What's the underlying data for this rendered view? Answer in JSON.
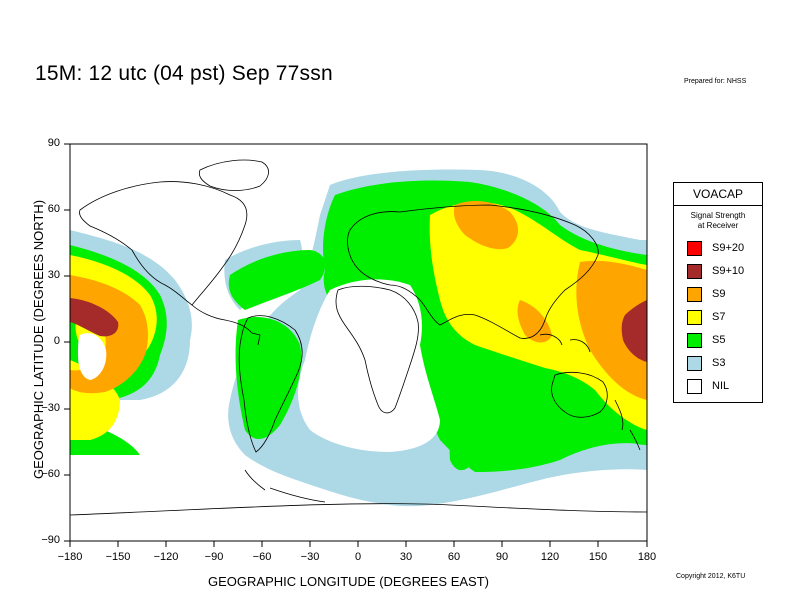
{
  "header": {
    "title": "15M:  12 utc (04 pst) Sep 77ssn",
    "prepared_for": "Prepared for: NHSS",
    "copyright": "Copyright 2012, K6TU"
  },
  "axes": {
    "xlabel": "GEOGRAPHIC LONGITUDE (DEGREES EAST)",
    "ylabel": "GEOGRAPHIC LATITUDE (DEGREES NORTH)",
    "x_ticks": [
      "−180",
      "−150",
      "−120",
      "−90",
      "−60",
      "−30",
      "0",
      "30",
      "60",
      "90",
      "120",
      "150",
      "180"
    ],
    "y_ticks": [
      "90",
      "60",
      "30",
      "0",
      "−30",
      "−60",
      "−90"
    ],
    "xlim": [
      -180,
      180
    ],
    "ylim": [
      -90,
      90
    ]
  },
  "legend": {
    "title": "VOACAP",
    "subtitle_line1": "Signal Strength",
    "subtitle_line2": "at Receiver",
    "items": [
      {
        "label": "S9+20",
        "color": "#ff0000"
      },
      {
        "label": "S9+10",
        "color": "#a52a2a"
      },
      {
        "label": "S9",
        "color": "#ffa500"
      },
      {
        "label": "S7",
        "color": "#ffff00"
      },
      {
        "label": "S5",
        "color": "#00ee00"
      },
      {
        "label": "S3",
        "color": "#add8e6"
      },
      {
        "label": "NIL",
        "color": "#ffffff"
      }
    ]
  },
  "colors": {
    "s9plus10": "#a52a2a",
    "s9": "#ffa500",
    "s7": "#ffff00",
    "s5": "#00ee00",
    "s3": "#add8e6",
    "nil": "#ffffff"
  }
}
